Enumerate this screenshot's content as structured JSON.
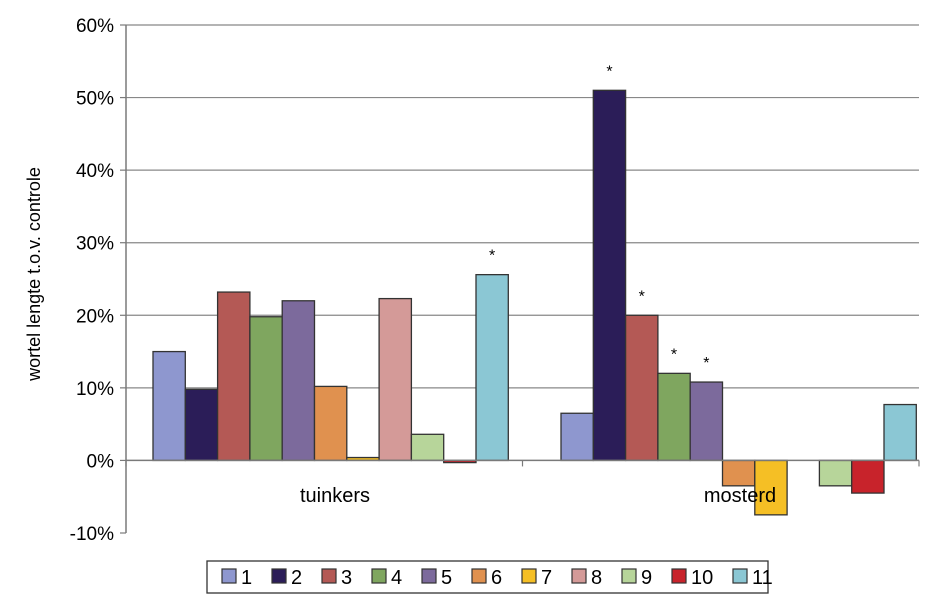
{
  "chart_data": {
    "type": "bar",
    "categories": [
      "tuinkers",
      "mosterd"
    ],
    "ylabel": "wortel lengte t.o.v. controle",
    "ylim": [
      -10,
      60
    ],
    "yticks": [
      60,
      50,
      40,
      30,
      20,
      10,
      0,
      -10
    ],
    "ytick_labels": [
      "60%",
      "50%",
      "40%",
      "30%",
      "20%",
      "10%",
      "0%",
      "-10%"
    ],
    "grid": true,
    "legend_position": "bottom",
    "series": [
      {
        "name": "1",
        "color": "#8E97CF",
        "values": [
          15,
          6.5
        ]
      },
      {
        "name": "2",
        "color": "#2B1D58",
        "values": [
          9.8,
          51
        ]
      },
      {
        "name": "3",
        "color": "#B45955",
        "values": [
          23.2,
          20
        ]
      },
      {
        "name": "4",
        "color": "#7FA65F",
        "values": [
          19.8,
          12
        ]
      },
      {
        "name": "5",
        "color": "#7C6A9C",
        "values": [
          22,
          10.8
        ]
      },
      {
        "name": "6",
        "color": "#E0914F",
        "values": [
          10.2,
          -3.5
        ]
      },
      {
        "name": "7",
        "color": "#F5BF25",
        "values": [
          0.4,
          -7.5
        ]
      },
      {
        "name": "8",
        "color": "#D49A98",
        "values": [
          22.3,
          0
        ]
      },
      {
        "name": "9",
        "color": "#B7D59A",
        "values": [
          3.6,
          -3.5
        ]
      },
      {
        "name": "10",
        "color": "#C8232B",
        "values": [
          -0.3,
          -4.5
        ]
      },
      {
        "name": "11",
        "color": "#8BC7D4",
        "values": [
          25.6,
          7.7
        ]
      }
    ],
    "significance_marker": "*",
    "significance": [
      {
        "series": "11",
        "category": "tuinkers"
      },
      {
        "series": "2",
        "category": "mosterd"
      },
      {
        "series": "3",
        "category": "mosterd"
      },
      {
        "series": "4",
        "category": "mosterd"
      },
      {
        "series": "5",
        "category": "mosterd"
      }
    ]
  }
}
